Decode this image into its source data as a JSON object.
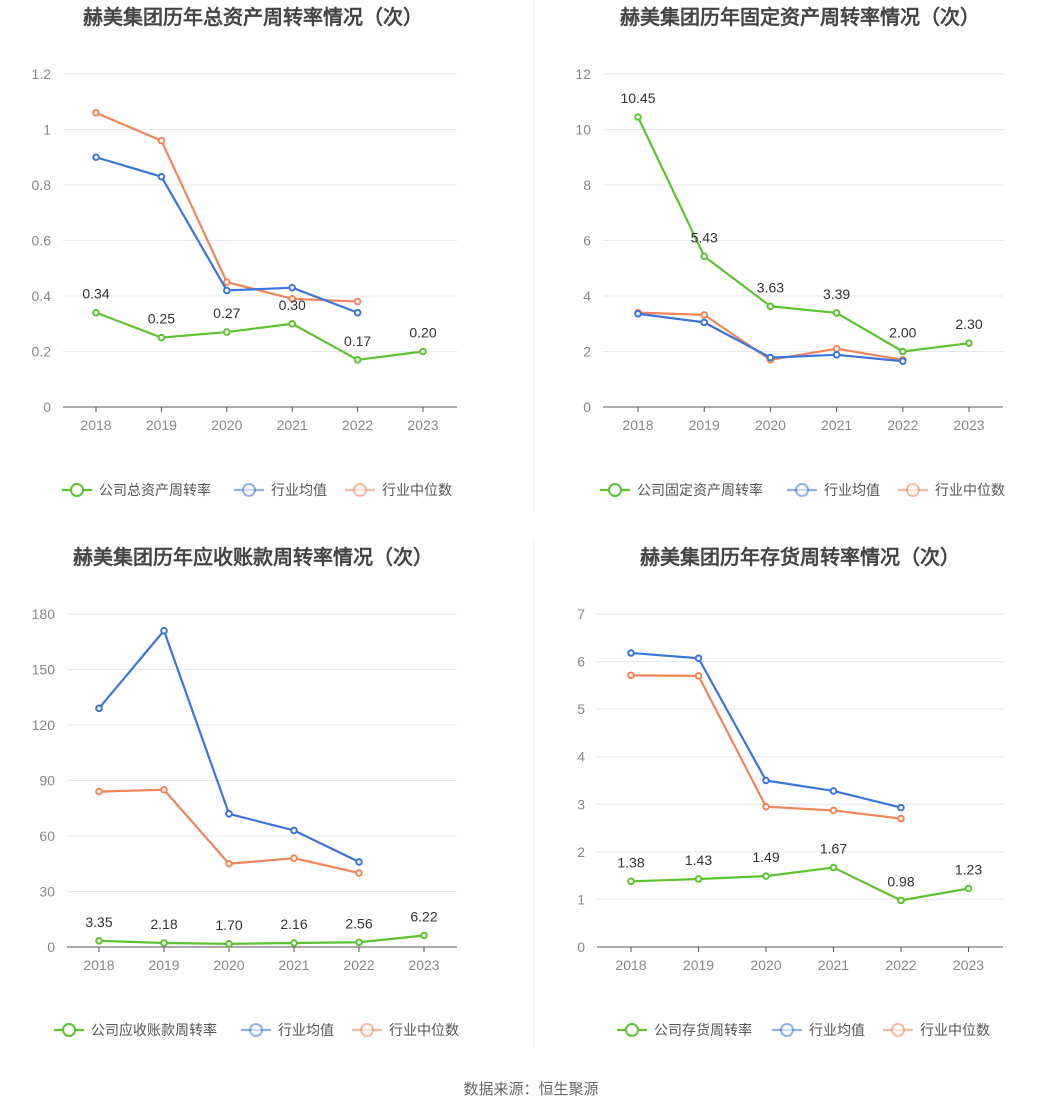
{
  "colors": {
    "company": "#5cc22f",
    "industry_avg": "#3b74dc",
    "industry_median": "#f0855a",
    "grid": "#e3e7ef",
    "axis_text": "#888888",
    "title_text": "#444444",
    "label_text": "#333333"
  },
  "legend_labels": {
    "industry_avg": "行业均值",
    "industry_median": "行业中位数"
  },
  "footer": {
    "source": "数据来源：恒生聚源"
  },
  "chart_data": [
    {
      "type": "line",
      "title": "赫美集团历年总资产周转率情况（次）",
      "categories": [
        "2018",
        "2019",
        "2020",
        "2021",
        "2022",
        "2023"
      ],
      "ylim": [
        0,
        1.2
      ],
      "yticks": [
        "0",
        "0.2",
        "0.4",
        "0.6",
        "0.8",
        "1",
        "1.2"
      ],
      "grid": true,
      "legend_position": "bottom",
      "series": [
        {
          "key": "company",
          "name": "公司总资产周转率",
          "values": [
            0.34,
            0.25,
            0.27,
            0.3,
            0.17,
            0.2
          ],
          "labels": [
            "0.34",
            "0.25",
            "0.27",
            "0.30",
            "0.17",
            "0.20"
          ]
        },
        {
          "key": "industry_avg",
          "name": "行业均值",
          "values": [
            0.9,
            0.83,
            0.42,
            0.43,
            0.34,
            null
          ]
        },
        {
          "key": "industry_median",
          "name": "行业中位数",
          "values": [
            1.06,
            0.96,
            0.45,
            0.39,
            0.38,
            null
          ]
        }
      ]
    },
    {
      "type": "line",
      "title": "赫美集团历年固定资产周转率情况（次）",
      "categories": [
        "2018",
        "2019",
        "2020",
        "2021",
        "2022",
        "2023"
      ],
      "ylim": [
        0,
        12
      ],
      "yticks": [
        "0",
        "2",
        "4",
        "6",
        "8",
        "10",
        "12"
      ],
      "grid": true,
      "legend_position": "bottom",
      "series": [
        {
          "key": "company",
          "name": "公司固定资产周转率",
          "values": [
            10.45,
            5.43,
            3.63,
            3.39,
            2.0,
            2.3
          ],
          "labels": [
            "10.45",
            "5.43",
            "3.63",
            "3.39",
            "2.00",
            "2.30"
          ]
        },
        {
          "key": "industry_avg",
          "name": "行业均值",
          "values": [
            3.36,
            3.05,
            1.78,
            1.88,
            1.65,
            null
          ]
        },
        {
          "key": "industry_median",
          "name": "行业中位数",
          "values": [
            3.4,
            3.32,
            1.7,
            2.1,
            1.7,
            null
          ]
        }
      ]
    },
    {
      "type": "line",
      "title": "赫美集团历年应收账款周转率情况（次）",
      "categories": [
        "2018",
        "2019",
        "2020",
        "2021",
        "2022",
        "2023"
      ],
      "ylim": [
        0,
        180
      ],
      "yticks": [
        "0",
        "30",
        "60",
        "90",
        "120",
        "150",
        "180"
      ],
      "grid": true,
      "legend_position": "bottom",
      "series": [
        {
          "key": "company",
          "name": "公司应收账款周转率",
          "values": [
            3.35,
            2.18,
            1.7,
            2.16,
            2.56,
            6.22
          ],
          "labels": [
            "3.35",
            "2.18",
            "1.70",
            "2.16",
            "2.56",
            "6.22"
          ]
        },
        {
          "key": "industry_avg",
          "name": "行业均值",
          "values": [
            129,
            171,
            72,
            63,
            46,
            null
          ]
        },
        {
          "key": "industry_median",
          "name": "行业中位数",
          "values": [
            84,
            85,
            45,
            48,
            40,
            null
          ]
        }
      ]
    },
    {
      "type": "line",
      "title": "赫美集团历年存货周转率情况（次）",
      "categories": [
        "2018",
        "2019",
        "2020",
        "2021",
        "2022",
        "2023"
      ],
      "ylim": [
        0,
        7
      ],
      "yticks": [
        "0",
        "1",
        "2",
        "3",
        "4",
        "5",
        "6",
        "7"
      ],
      "grid": true,
      "legend_position": "bottom",
      "series": [
        {
          "key": "company",
          "name": "公司存货周转率",
          "values": [
            1.38,
            1.43,
            1.49,
            1.67,
            0.98,
            1.23
          ],
          "labels": [
            "1.38",
            "1.43",
            "1.49",
            "1.67",
            "0.98",
            "1.23"
          ]
        },
        {
          "key": "industry_avg",
          "name": "行业均值",
          "values": [
            6.18,
            6.07,
            3.5,
            3.28,
            2.93,
            null
          ]
        },
        {
          "key": "industry_median",
          "name": "行业中位数",
          "values": [
            5.71,
            5.7,
            2.95,
            2.87,
            2.7,
            null
          ]
        }
      ]
    }
  ]
}
